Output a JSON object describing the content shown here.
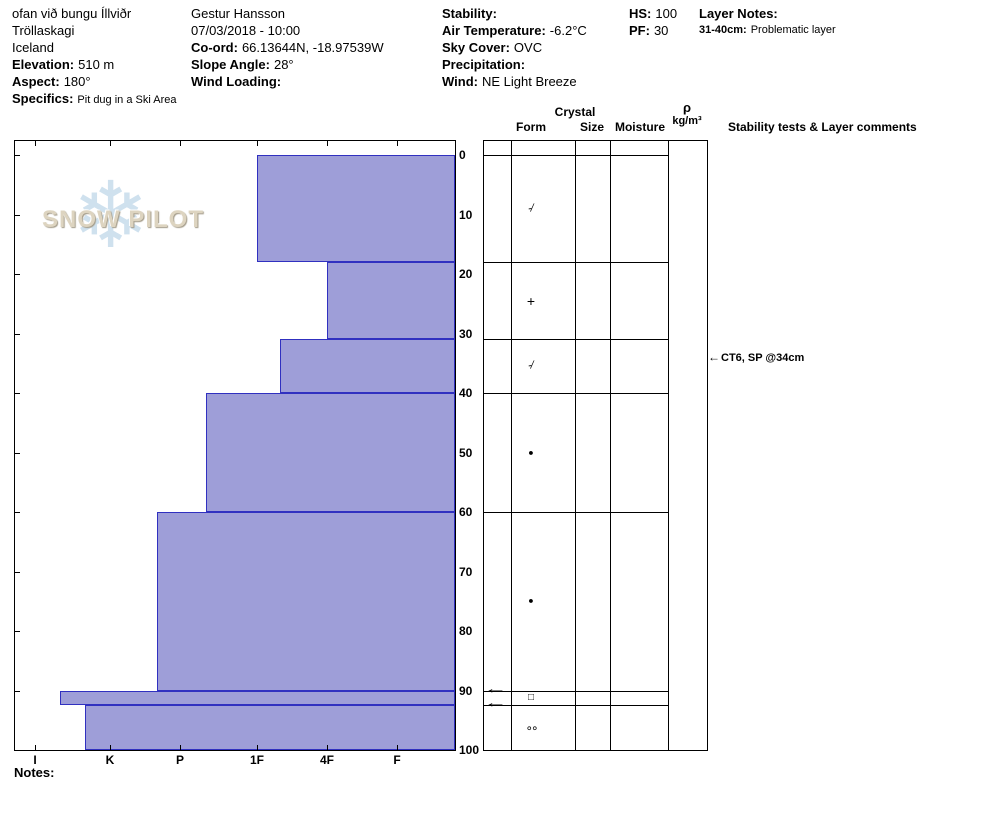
{
  "header": {
    "location": {
      "name": "ofan við bungu Íllviðr",
      "region": "Tröllaskagi",
      "country": "Iceland",
      "elevation_label": "Elevation:",
      "elevation_value": "510 m",
      "aspect_label": "Aspect:",
      "aspect_value": "180°",
      "specifics_label": "Specifics:",
      "specifics_value": "Pit dug in a Ski Area"
    },
    "observer": {
      "name": "Gestur Hansson",
      "datetime": "07/03/2018 - 10:00",
      "coord_label": "Co-ord:",
      "coord_value": "66.13644N, -18.97539W",
      "slope_angle_label": "Slope Angle:",
      "slope_angle_value": "28°",
      "wind_loading_label": "Wind Loading:",
      "wind_loading_value": ""
    },
    "conditions": {
      "stability_label": "Stability:",
      "stability_value": "",
      "air_temp_label": "Air Temperature:",
      "air_temp_value": "-6.2°C",
      "sky_cover_label": "Sky Cover:",
      "sky_cover_value": "OVC",
      "precipitation_label": "Precipitation:",
      "precipitation_value": "",
      "wind_label": "Wind:",
      "wind_value": "NE Light Breeze"
    },
    "snowpack": {
      "hs_label": "HS:",
      "hs_value": "100",
      "pf_label": "PF:",
      "pf_value": "30"
    },
    "layer_notes": {
      "label": "Layer Notes:",
      "notes": [
        {
          "range": "31-40cm:",
          "text": "Problematic layer"
        }
      ]
    }
  },
  "logo": {
    "word1": "SNOW",
    "word2": "PILOT",
    "snowflake": "❄"
  },
  "table_headers": {
    "crystal": "Crystal",
    "form": "Form",
    "size": "Size",
    "moisture": "Moisture",
    "density_symbol": "ρ",
    "density_units": "kg/m³",
    "stability": "Stability tests & Layer comments"
  },
  "notes_label": "Notes:",
  "chart_data": {
    "type": "bar",
    "subtype": "snow-pit-hardness-profile",
    "title": "Snow pit profile, depth vs hand hardness",
    "depth_unit": "cm",
    "depth_range": [
      0,
      100
    ],
    "depth_ticks": [
      0,
      10,
      20,
      30,
      40,
      50,
      60,
      70,
      80,
      90,
      100
    ],
    "hardness_ticks": [
      "I",
      "K",
      "P",
      "1F",
      "4F",
      "F"
    ],
    "hardness_note": "hand hardness increases toward the left; bars anchored at right edge",
    "bar_fill": "#9e9ed8",
    "bar_border": "#3030c0",
    "layers": [
      {
        "top_cm": 0,
        "bottom_cm": 18,
        "hardness": "1F",
        "grain_form": "decomposing-fragments",
        "symbol": "-∕"
      },
      {
        "top_cm": 18,
        "bottom_cm": 31,
        "hardness": "4F",
        "grain_form": "precipitation-particles",
        "symbol": "+"
      },
      {
        "top_cm": 31,
        "bottom_cm": 40,
        "hardness": "1F-",
        "grain_form": "decomposing-fragments",
        "symbol": "-∕"
      },
      {
        "top_cm": 40,
        "bottom_cm": 60,
        "hardness": "P-",
        "grain_form": "rounded-grains",
        "symbol": "●"
      },
      {
        "top_cm": 60,
        "bottom_cm": 90,
        "hardness": "P+",
        "grain_form": "rounded-grains",
        "symbol": "●"
      },
      {
        "top_cm": 90,
        "bottom_cm": 92.5,
        "hardness": "I-",
        "grain_form": "faceted-crystals",
        "symbol": "□"
      },
      {
        "top_cm": 92.5,
        "bottom_cm": 100,
        "hardness": "K+",
        "grain_form": "melt-forms",
        "symbol": "∘∘"
      }
    ],
    "stability_tests": [
      {
        "depth_cm": 34,
        "label": "CT6, SP @34cm"
      }
    ],
    "thin_layer_pointer_depths_cm": [
      90,
      92.5
    ]
  }
}
